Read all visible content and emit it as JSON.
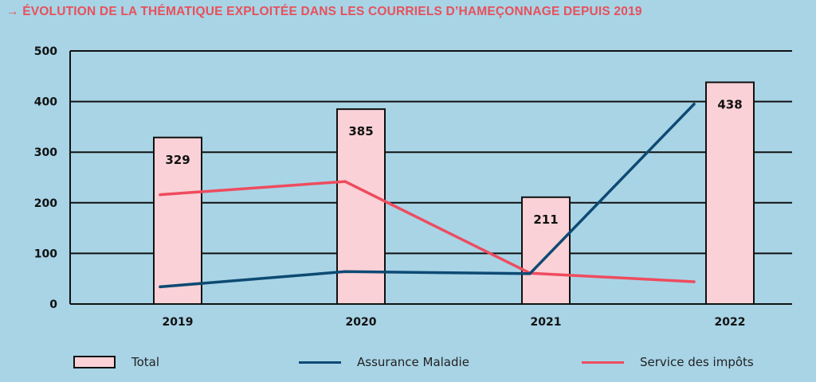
{
  "title": "→ ÉVOLUTION DE LA THÉMATIQUE EXPLOITÉE DANS LES COURRIELS D’HAMEÇONNAGE DEPUIS 2019",
  "colors": {
    "background": "#a8d4e6",
    "title": "#e8505b",
    "bar_fill": "#f9d1d6",
    "bar_stroke": "#111111",
    "assurance": "#0d4a73",
    "impots": "#ee4c5e",
    "grid": "#111111"
  },
  "chart_data": {
    "type": "bar",
    "categories": [
      "2019",
      "2020",
      "2021",
      "2022"
    ],
    "ylim": [
      0,
      500
    ],
    "yticks": [
      "0",
      "100",
      "200",
      "300",
      "400",
      "500"
    ],
    "grid": true,
    "legend_position": "bottom",
    "series": [
      {
        "name": "Total",
        "type": "bar",
        "values": [
          329,
          385,
          211,
          438
        ],
        "labels": [
          "329",
          "385",
          "211",
          "438"
        ]
      },
      {
        "name": "Assurance Maladie",
        "type": "line",
        "values": [
          34,
          64,
          60,
          395
        ]
      },
      {
        "name": "Service des impôts",
        "type": "line",
        "values": [
          216,
          242,
          61,
          44
        ]
      }
    ]
  }
}
